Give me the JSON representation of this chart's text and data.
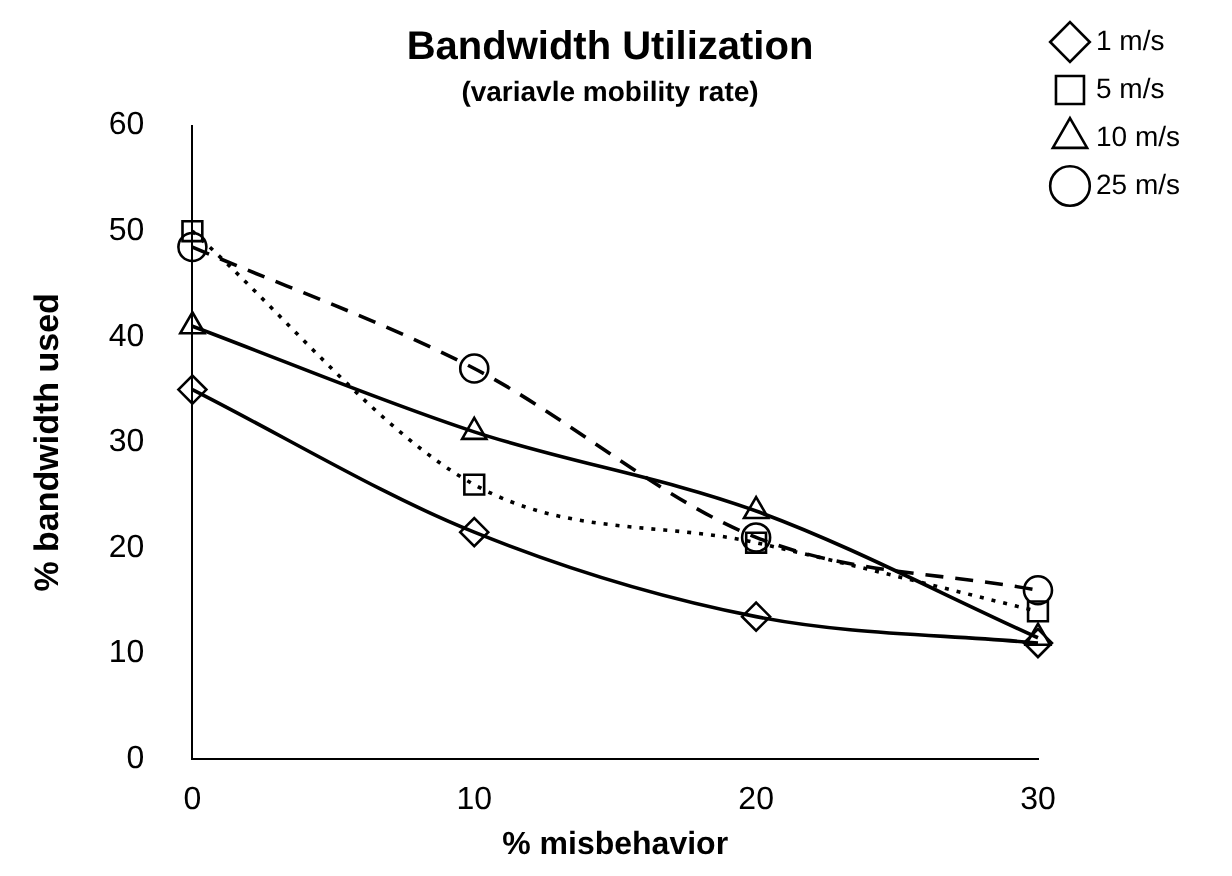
{
  "chart_data": {
    "type": "line",
    "title": "Bandwidth Utilization",
    "subtitle": "(variavle mobility rate)",
    "xlabel": "% misbehavior",
    "ylabel": "% bandwidth used",
    "x": [
      0,
      10,
      20,
      30
    ],
    "xlim": [
      0,
      30
    ],
    "xticks": [
      0,
      10,
      20,
      30
    ],
    "ylim": [
      0,
      60
    ],
    "yticks": [
      0,
      10,
      20,
      30,
      40,
      50,
      60
    ],
    "grid": false,
    "legend": "top right",
    "series": [
      {
        "name": "1 m/s",
        "color": "#000000",
        "marker": "diamond",
        "line_style": "solid",
        "values": [
          35,
          21.5,
          13.5,
          11
        ]
      },
      {
        "name": "5 m/s",
        "color": "#000000",
        "marker": "square",
        "line_style": "dotted",
        "values": [
          50,
          26,
          20.5,
          14
        ]
      },
      {
        "name": "10 m/s",
        "color": "#000000",
        "marker": "triangle",
        "line_style": "solid",
        "values": [
          41,
          31,
          23.5,
          11.5
        ]
      },
      {
        "name": "25 m/s",
        "color": "#000000",
        "marker": "circle",
        "line_style": "dashed",
        "values": [
          48.5,
          37,
          21,
          16
        ]
      }
    ]
  }
}
